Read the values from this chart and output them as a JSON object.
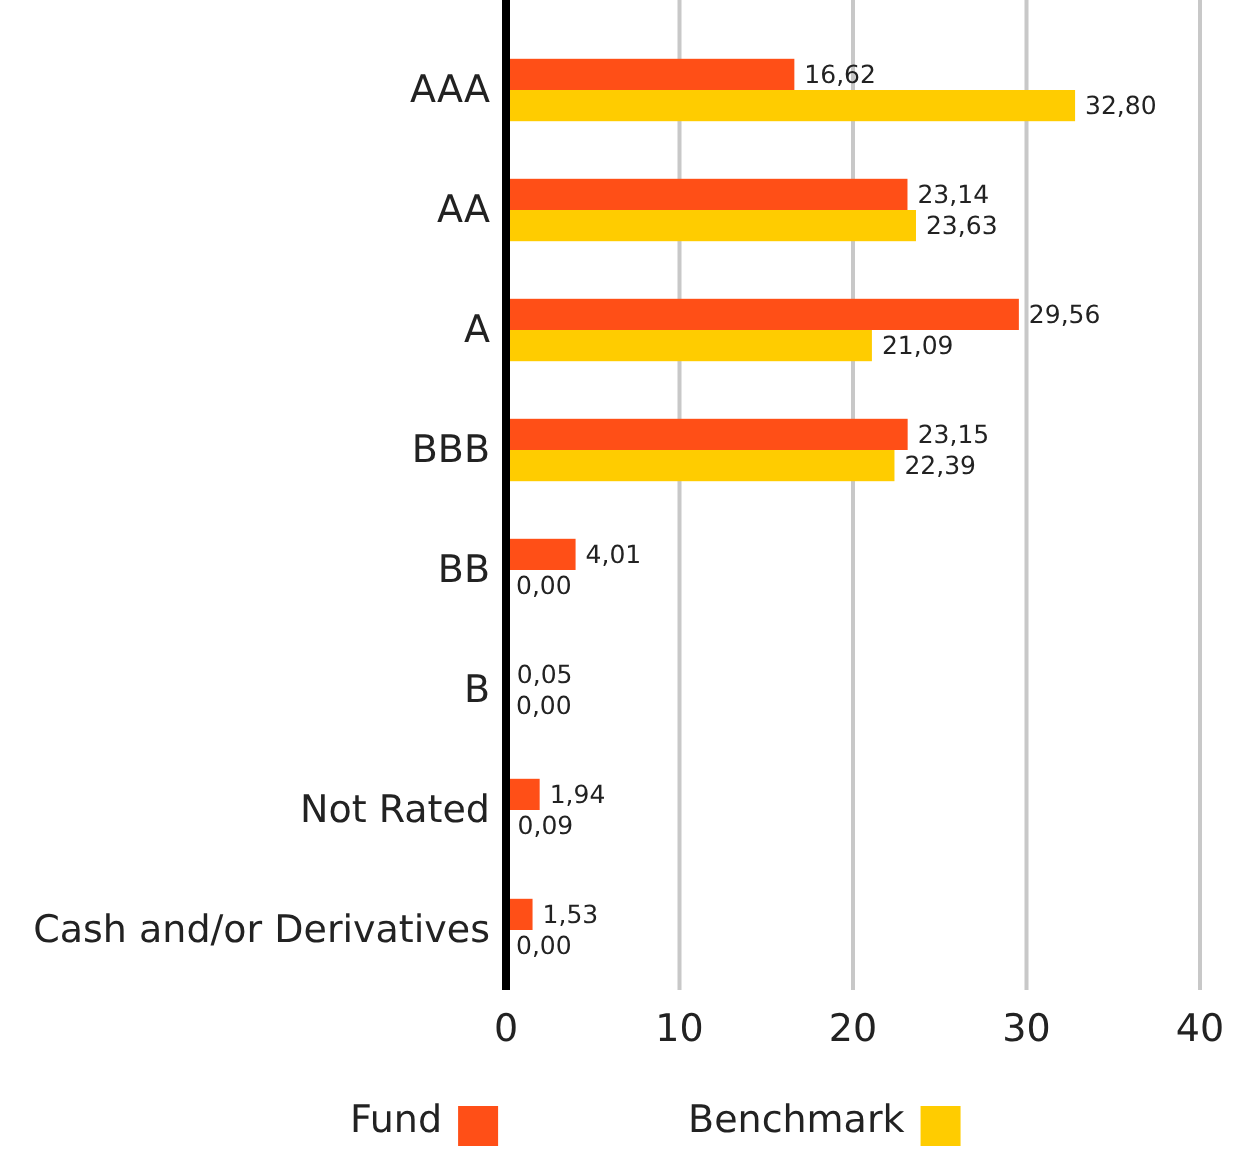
{
  "chart_data": {
    "type": "bar",
    "orientation": "horizontal",
    "categories": [
      "AAA",
      "AA",
      "A",
      "BBB",
      "BB",
      "B",
      "Not Rated",
      "Cash and/or Derivatives"
    ],
    "series": [
      {
        "name": "Fund",
        "color": "#ff4f17",
        "values": [
          16.62,
          23.14,
          29.56,
          23.15,
          4.01,
          0.05,
          1.94,
          1.53
        ],
        "value_labels": [
          "16,62",
          "23,14",
          "29,56",
          "23,15",
          "4,01",
          "0,05",
          "1,94",
          "1,53"
        ]
      },
      {
        "name": "Benchmark",
        "color": "#ffcc00",
        "values": [
          32.8,
          23.63,
          21.09,
          22.39,
          0.0,
          0.0,
          0.09,
          0.0
        ],
        "value_labels": [
          "32,80",
          "23,63",
          "21,09",
          "22,39",
          "0,00",
          "0,00",
          "0,09",
          "0,00"
        ]
      }
    ],
    "xlim": [
      0,
      40
    ],
    "xticks": [
      0,
      10,
      20,
      30,
      40
    ],
    "grid": "x",
    "legend": "bottom"
  }
}
